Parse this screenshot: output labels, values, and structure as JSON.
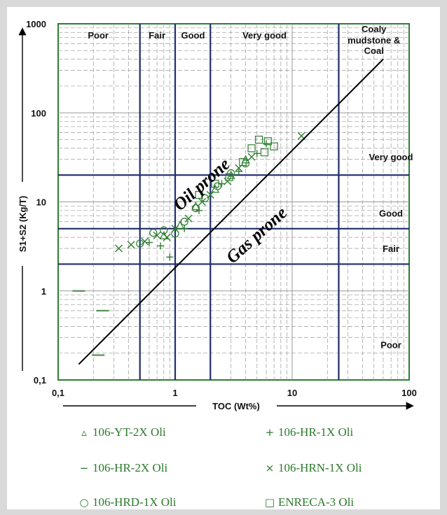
{
  "chart_data": {
    "type": "scatter",
    "title": "",
    "xlabel": "TOC (Wt%)",
    "ylabel": "S1+S2 (Kg/T)",
    "xscale": "log",
    "yscale": "log",
    "xlim": [
      0.1,
      100
    ],
    "ylim": [
      0.1,
      1000
    ],
    "x_ticks": [
      "0,1",
      "1",
      "10",
      "100"
    ],
    "y_ticks": [
      "0,1",
      "1",
      "10",
      "100",
      "1000"
    ],
    "grid": true,
    "x_class_boundaries": [
      0.5,
      1,
      2,
      25
    ],
    "y_class_boundaries": [
      2,
      5,
      20
    ],
    "top_labels": [
      {
        "text": "Poor",
        "x": 0.22
      },
      {
        "text": "Fair",
        "x": 0.7
      },
      {
        "text": "Good",
        "x": 1.42
      },
      {
        "text": "Very good",
        "x": 5.8
      },
      {
        "text": "Coaly",
        "x": 50
      },
      {
        "text": "mudstone &",
        "x": 50
      },
      {
        "text": "Coal",
        "x": 50
      }
    ],
    "right_labels": [
      {
        "text": "Very good",
        "y": 32
      },
      {
        "text": "Good",
        "y": 7.5
      },
      {
        "text": "Fair",
        "y": 3.0
      },
      {
        "text": "Poor",
        "y": 0.25
      }
    ],
    "annotations": [
      "Oil prone",
      "Gas prone"
    ],
    "divider_line": {
      "x": [
        0.15,
        60
      ],
      "y": [
        0.15,
        400
      ]
    },
    "series": [
      {
        "name": "106-YT-2X Oli",
        "marker": "triangle",
        "points": [
          [
            0.8,
            4.2
          ],
          [
            1.1,
            5.5
          ],
          [
            1.5,
            9
          ],
          [
            2.2,
            14
          ],
          [
            3,
            20
          ],
          [
            4,
            30
          ]
        ]
      },
      {
        "name": "106-HR-1X Oli",
        "marker": "plus",
        "points": [
          [
            0.6,
            3.5
          ],
          [
            0.75,
            3.2
          ],
          [
            0.9,
            2.4
          ],
          [
            1.2,
            5
          ],
          [
            1.6,
            8
          ],
          [
            2.5,
            16
          ],
          [
            3.5,
            22
          ],
          [
            5,
            35
          ],
          [
            6,
            45
          ]
        ]
      },
      {
        "name": "106-HR-2X Oli",
        "marker": "dash",
        "points": [
          [
            0.15,
            1.0
          ],
          [
            0.24,
            0.6
          ],
          [
            0.22,
            0.19
          ]
        ]
      },
      {
        "name": "106-HRN-1X Oli",
        "marker": "cross",
        "points": [
          [
            0.33,
            3.0
          ],
          [
            0.42,
            3.3
          ],
          [
            0.55,
            3.6
          ],
          [
            0.7,
            4.2
          ],
          [
            0.85,
            4.0
          ],
          [
            1.0,
            5.0
          ],
          [
            1.3,
            6.5
          ],
          [
            1.7,
            10
          ],
          [
            2.0,
            12
          ],
          [
            2.8,
            17
          ],
          [
            3.5,
            24
          ],
          [
            4.5,
            32
          ],
          [
            12,
            55
          ]
        ]
      },
      {
        "name": "106-HRD-1X Oli",
        "marker": "circle",
        "points": [
          [
            0.5,
            3.4
          ],
          [
            0.65,
            4.5
          ],
          [
            0.8,
            4.8
          ],
          [
            1.0,
            4.4
          ],
          [
            1.2,
            6.0
          ],
          [
            1.5,
            8.5
          ],
          [
            1.8,
            11
          ],
          [
            2.3,
            15
          ],
          [
            3,
            21
          ],
          [
            4,
            27
          ]
        ]
      },
      {
        "name": "ENRECA-3 Oli",
        "marker": "square",
        "points": [
          [
            1.6,
            12
          ],
          [
            2.2,
            16
          ],
          [
            2.9,
            19
          ],
          [
            3.8,
            28
          ],
          [
            4.5,
            40
          ],
          [
            5.2,
            50
          ],
          [
            6.2,
            48
          ],
          [
            7.0,
            42
          ],
          [
            5.8,
            36
          ]
        ]
      }
    ]
  },
  "legend": [
    {
      "symbol": "▵",
      "label": "106-YT-2X Oli"
    },
    {
      "symbol": "+",
      "label": "106-HR-1X Oli"
    },
    {
      "symbol": "−",
      "label": "106-HR-2X Oli"
    },
    {
      "symbol": "×",
      "label": "106-HRN-1X Oli"
    },
    {
      "symbol": "○",
      "label": "106-HRD-1X Oli"
    },
    {
      "symbol": "□",
      "label": "ENRECA-3 Oli"
    }
  ],
  "colors": {
    "marker": "#2e7d32",
    "boundary": "#1f2d6b",
    "grid": "#9a9a9a",
    "frame": "#2e7d32",
    "axis": "#000000"
  }
}
